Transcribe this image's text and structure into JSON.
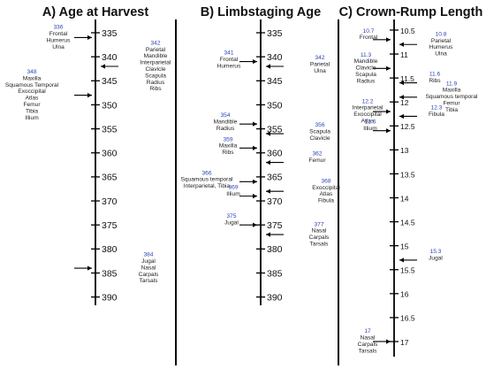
{
  "panels": [
    {
      "title": "A) Age at Harvest",
      "ticks": [
        "335",
        "340",
        "345",
        "350",
        "355",
        "360",
        "365",
        "370",
        "375",
        "380",
        "385",
        "390"
      ],
      "events": [
        {
          "value": "336",
          "bones": [
            "Frontal",
            "Humerus",
            "Ulna"
          ]
        },
        {
          "value": "342",
          "bones": [
            "Parietal",
            "Mandible",
            "Interparietal",
            "Clavicle",
            "Scapula",
            "Radius",
            "Ribs"
          ]
        },
        {
          "value": "348",
          "bones": [
            "Maxilla",
            "Squamous Temporal",
            "Exoccipital",
            "Atlas",
            "Femur",
            "Tibia",
            "Illium"
          ]
        },
        {
          "value": "384",
          "bones": [
            "Jugal",
            "Nasal",
            "Carpals",
            "Tarsals"
          ]
        }
      ]
    },
    {
      "title": "B) Limbstaging Age",
      "ticks": [
        "335",
        "340",
        "345",
        "350",
        "355",
        "360",
        "365",
        "370",
        "375",
        "380",
        "385",
        "390"
      ],
      "events": [
        {
          "value": "341",
          "bones": [
            "Frontal",
            "Humerus"
          ]
        },
        {
          "value": "342",
          "bones": [
            "Parietal",
            "Ulna"
          ]
        },
        {
          "value": "354",
          "bones": [
            "Mandible",
            "Radius"
          ]
        },
        {
          "value": "356",
          "bones": [
            "Scapula",
            "Clavicle"
          ]
        },
        {
          "value": "359",
          "bones": [
            "Maxilla",
            "Ribs"
          ]
        },
        {
          "value": "362",
          "bones": [
            "Femur"
          ]
        },
        {
          "value": "366",
          "bones": [
            "Squamous temporal",
            "Interparietal,  Tibia"
          ]
        },
        {
          "value": "368",
          "bones": [
            "Exoccipital",
            "Atlas",
            "Fibula"
          ]
        },
        {
          "value": "369",
          "bones": [
            "Illium"
          ]
        },
        {
          "value": "375",
          "bones": [
            "Jugal"
          ]
        },
        {
          "value": "377",
          "bones": [
            "Nasal",
            "Carpals",
            "Tarsals"
          ]
        }
      ]
    },
    {
      "title": "C) Crown-Rump Length",
      "ticks": [
        "10.5",
        "11",
        "11.5",
        "12",
        "12.5",
        "13",
        "13.5",
        "14",
        "14.5",
        "15",
        "15.5",
        "16",
        "16.5",
        "17"
      ],
      "events": [
        {
          "value": "10.7",
          "bones": [
            "Frontal"
          ]
        },
        {
          "value": "10.8",
          "bones": [
            "Parietal",
            "Humerus",
            "Ulna"
          ]
        },
        {
          "value": "11.3",
          "bones": [
            "Mandible",
            "Clavicle",
            "Scapula",
            "Radius"
          ]
        },
        {
          "value": "11.6",
          "bones": [
            "Ribs"
          ]
        },
        {
          "value": "11.9",
          "bones": [
            "Maxilla",
            "Squamous temporal",
            "Femur",
            "Tibia"
          ]
        },
        {
          "value": "12.2",
          "bones": [
            "Interparietal",
            "Exoccipital",
            "Atlas"
          ]
        },
        {
          "value": "12.3",
          "bones": [
            "Fibula"
          ]
        },
        {
          "value": "12.6",
          "bones": [
            "Illium"
          ]
        },
        {
          "value": "15.3",
          "bones": [
            "Jugal"
          ]
        },
        {
          "value": "17",
          "bones": [
            "Nasal",
            "Carpals",
            "Tarsals"
          ]
        }
      ]
    }
  ],
  "colors": {
    "value_label": "#2a43b8",
    "text": "#222222",
    "axis": "#000000"
  }
}
